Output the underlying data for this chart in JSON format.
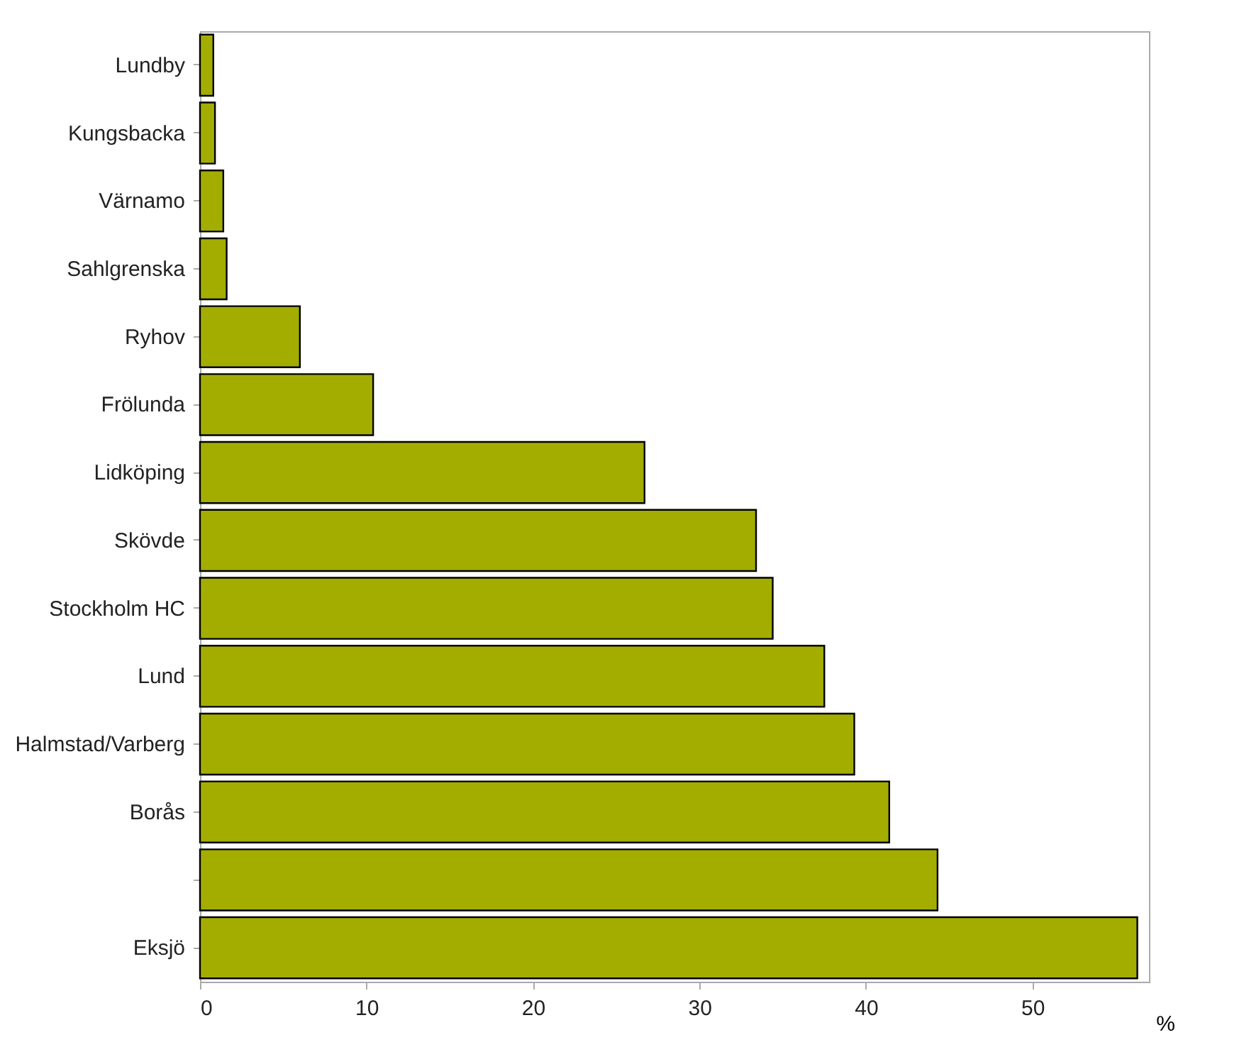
{
  "chart_data": {
    "type": "bar",
    "orientation": "horizontal",
    "xlabel": "%",
    "categories": [
      "Lundby",
      "Kungsbacka",
      "Värnamo",
      "Sahlgrenska",
      "Ryhov",
      "Frölunda",
      "Lidköping",
      "Skövde",
      "Stockholm HC",
      "Lund",
      "Halmstad/Varberg",
      "Borås",
      null,
      "Eksjö"
    ],
    "values": [
      0.8,
      0.9,
      1.4,
      1.6,
      6.0,
      10.4,
      26.7,
      33.4,
      34.4,
      37.5,
      39.3,
      41.4,
      44.3,
      56.3
    ],
    "color": "#a3ad00",
    "xlim": [
      0,
      57
    ],
    "xticks": [
      0,
      10,
      20,
      30,
      40,
      50
    ],
    "grid": false
  }
}
